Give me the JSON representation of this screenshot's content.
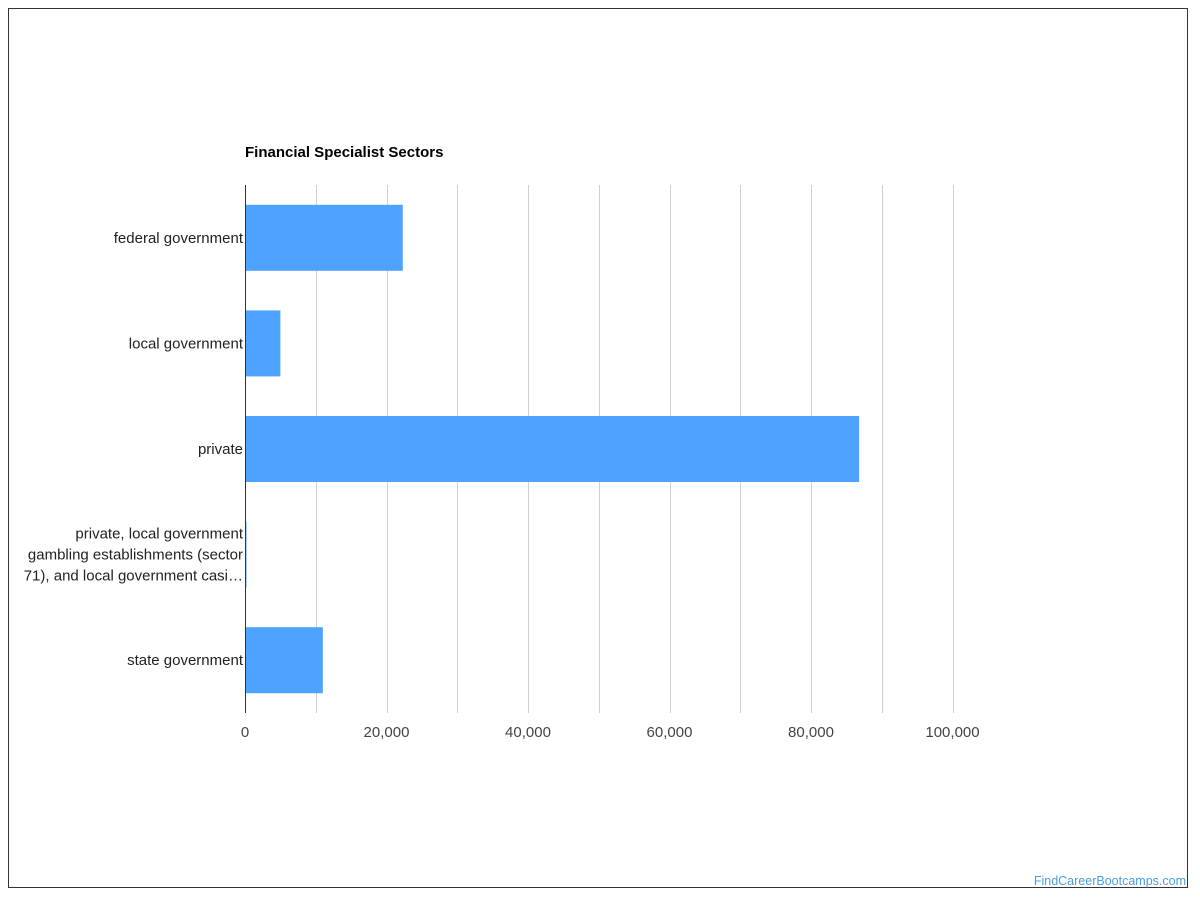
{
  "chart_data": {
    "type": "bar",
    "orientation": "horizontal",
    "title": "Financial Specialist Sectors",
    "categories": [
      "federal government",
      "local government",
      "private",
      "private, local government gambling establishments (sector 71), and local government casi…",
      "state government"
    ],
    "category_lines": [
      [
        "federal government"
      ],
      [
        "local government"
      ],
      [
        "private"
      ],
      [
        "private, local government",
        "gambling establishments (sector",
        "71), and local government casi…"
      ],
      [
        "state government"
      ]
    ],
    "values": [
      22300,
      5000,
      86800,
      200,
      11000
    ],
    "xlim": [
      0,
      100000
    ],
    "xticks": [
      0,
      20000,
      40000,
      60000,
      80000,
      100000
    ],
    "xtick_labels": [
      "0",
      "20,000",
      "40,000",
      "60,000",
      "80,000",
      "100,000"
    ],
    "grid": true,
    "bar_color": "#4da3ff",
    "xlabel": "",
    "ylabel": ""
  },
  "watermark": "FindCareerBootcamps.com"
}
